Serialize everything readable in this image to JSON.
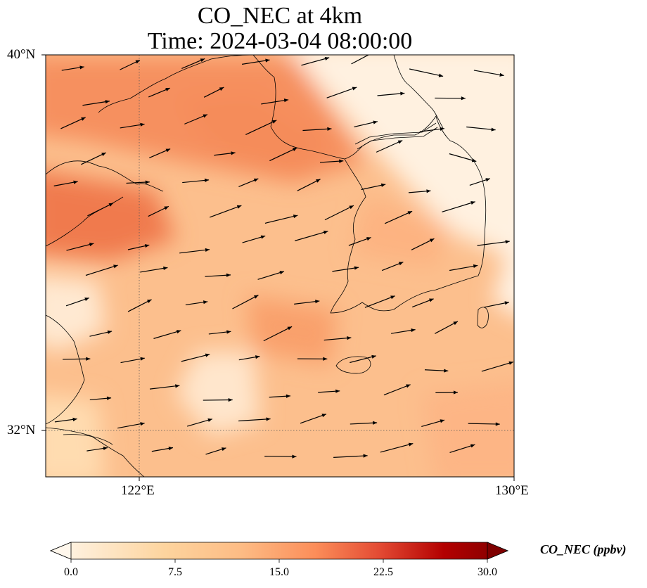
{
  "title_line1": "CO_NEC at 4km",
  "title_line2": "Time: 2024-03-04 08:00:00",
  "axes": {
    "lat_ticks": [
      "40°N",
      "32°N"
    ],
    "lon_ticks": [
      "122°E",
      "130°E"
    ],
    "lon_range": [
      120,
      130
    ],
    "lat_range": [
      31,
      40
    ]
  },
  "colorbar": {
    "label": "CO_NEC (ppbv)",
    "ticks": [
      "0.0",
      "7.5",
      "15.0",
      "22.5",
      "30.0"
    ],
    "range": [
      0,
      30
    ],
    "extend": "both",
    "colormap": "OrRd",
    "colors": [
      "#fff7ec",
      "#fdd49e",
      "#fdbb84",
      "#fc8d59",
      "#e34a33",
      "#b30000",
      "#7f0000"
    ]
  },
  "map": {
    "gridlines": "dotted at 122°E and 32°N",
    "wind_vectors": "black arrows pointing mostly east to east-northeast"
  }
}
